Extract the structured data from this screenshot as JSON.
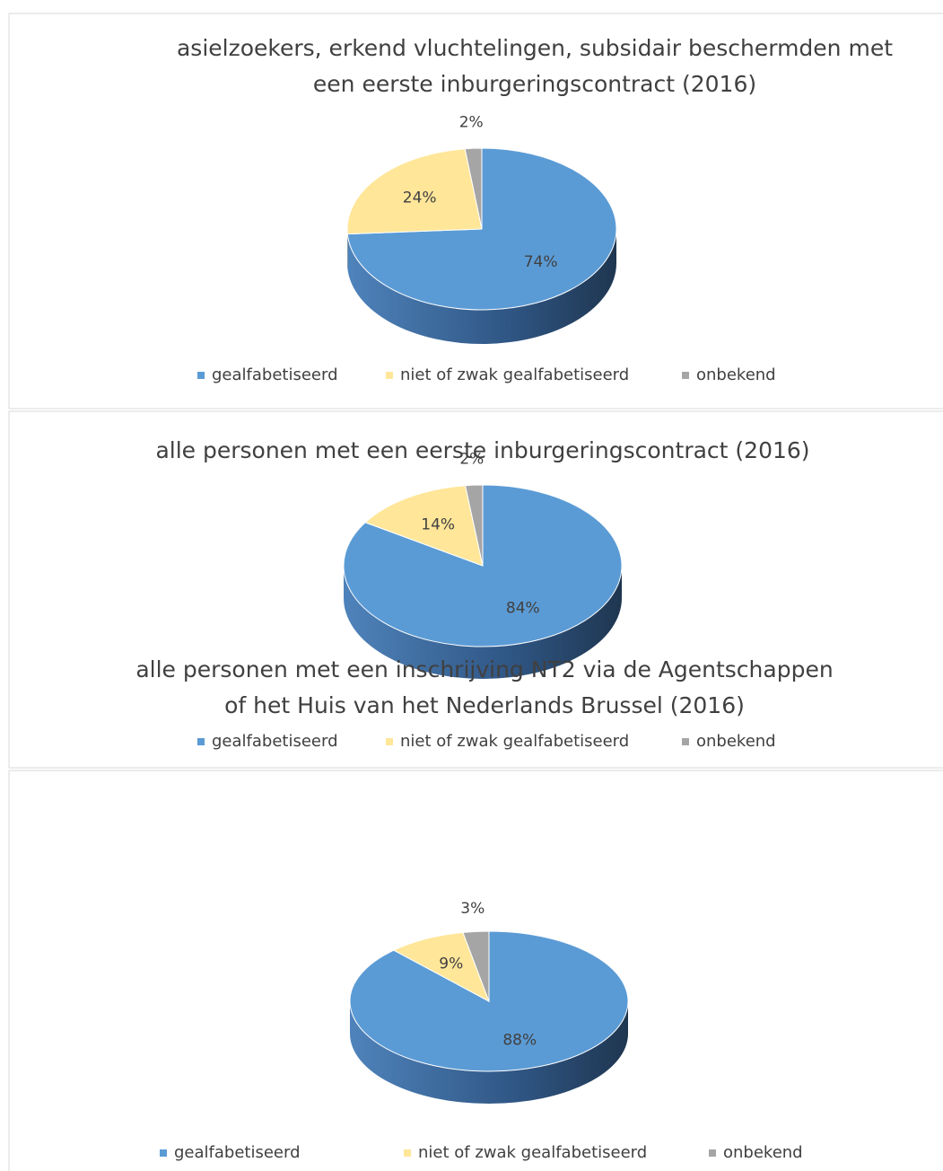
{
  "chart_data": [
    {
      "type": "pie",
      "title": [
        "asielzoekers, erkend vluchtelingen, subsidair beschermden met",
        "een eerste inburgeringscontract (2016)"
      ],
      "categories": [
        "gealfabetiseerd",
        "niet of zwak gealfabetiseerd",
        "onbekend"
      ],
      "values": [
        74,
        24,
        2
      ],
      "value_labels": [
        "74%",
        "24%",
        "2%"
      ],
      "colors": [
        "#5b9bd5",
        "#ffe699",
        "#a5a5a5"
      ],
      "legend": "bottom"
    },
    {
      "type": "pie",
      "title": [
        "alle personen met een eerste inburgeringscontract (2016)"
      ],
      "categories": [
        "gealfabetiseerd",
        "niet of zwak gealfabetiseerd",
        "onbekend"
      ],
      "values": [
        84,
        14,
        2
      ],
      "value_labels": [
        "84%",
        "14%",
        "2%"
      ],
      "colors": [
        "#5b9bd5",
        "#ffe699",
        "#a5a5a5"
      ],
      "legend": "bottom"
    },
    {
      "type": "pie",
      "title": [
        "alle personen met een inschrijving NT2 via de Agentschappen",
        "of het Huis van het Nederlands Brussel (2016)"
      ],
      "categories": [
        "gealfabetiseerd",
        "niet of zwak gealfabetiseerd",
        "onbekend"
      ],
      "values": [
        88,
        9,
        3
      ],
      "value_labels": [
        "88%",
        "9%",
        "3%"
      ],
      "colors": [
        "#5b9bd5",
        "#ffe699",
        "#a5a5a5"
      ],
      "legend": "bottom"
    }
  ]
}
